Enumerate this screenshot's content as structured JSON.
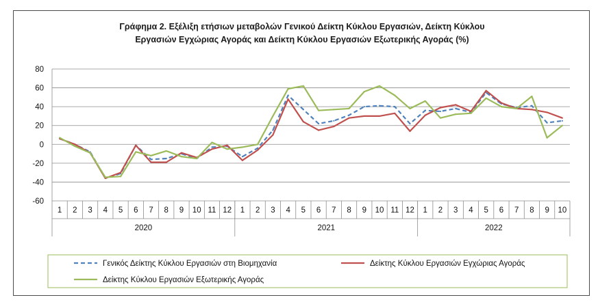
{
  "chart_data": {
    "type": "line",
    "title_line1": "Γράφημα 2. Εξέλιξη ετήσιων μεταβολών Γενικού Δείκτη Κύκλου Εργασιών,  Δείκτη Κύκλου",
    "title_line2": "Εργασιών Εγχώριας Αγοράς και Δείκτη Κύκλου Εργασιών Εξωτερικής Αγοράς (%)",
    "ylim": [
      -60,
      80
    ],
    "yticks": [
      80,
      60,
      40,
      20,
      0,
      -20,
      -40,
      -60
    ],
    "grid": "horizontal",
    "legend_position": "bottom",
    "months": [
      "1",
      "2",
      "3",
      "4",
      "5",
      "6",
      "7",
      "8",
      "9",
      "10",
      "11",
      "12",
      "1",
      "2",
      "3",
      "4",
      "5",
      "6",
      "7",
      "8",
      "9",
      "10",
      "11",
      "12",
      "1",
      "2",
      "3",
      "4",
      "5",
      "6",
      "7",
      "8",
      "9",
      "10"
    ],
    "years": [
      {
        "label": "2020",
        "count": 12
      },
      {
        "label": "2021",
        "count": 12
      },
      {
        "label": "2022",
        "count": 10
      }
    ],
    "series": [
      {
        "name": "Γενικός Δείκτης Κύκλου Εργασιών στη Βιομηχανία",
        "color": "#4f81bd",
        "style": "dashed",
        "values": [
          6,
          0,
          -8,
          -36,
          -31,
          -1,
          -16,
          -15,
          -10,
          -15,
          -3,
          -2,
          -13,
          -4,
          15,
          52,
          37,
          22,
          25,
          31,
          40,
          41,
          40,
          22,
          36,
          35,
          38,
          34,
          55,
          43,
          39,
          41,
          23,
          25
        ]
      },
      {
        "name": "Δείκτης Κύκλου Εργασιών Εγχώριας Αγοράς",
        "color": "#c0504d",
        "style": "solid",
        "values": [
          6,
          0,
          -9,
          -36,
          -30,
          -1,
          -19,
          -19,
          -9,
          -14,
          -5,
          -1,
          -17,
          -6,
          10,
          48,
          24,
          15,
          19,
          28,
          30,
          30,
          33,
          14,
          31,
          39,
          42,
          35,
          57,
          44,
          38,
          37,
          34,
          28
        ]
      },
      {
        "name": "Δείκτης Κύκλου Εργασιών Εξωτερικής Αγοράς",
        "color": "#9bbb59",
        "style": "solid",
        "values": [
          7,
          -2,
          -9,
          -35,
          -34,
          -8,
          -12,
          -7,
          -13,
          -15,
          2,
          -5,
          -3,
          0,
          30,
          59,
          62,
          36,
          37,
          38,
          56,
          62,
          52,
          38,
          46,
          28,
          32,
          33,
          49,
          40,
          38,
          51,
          7,
          20
        ]
      }
    ]
  }
}
